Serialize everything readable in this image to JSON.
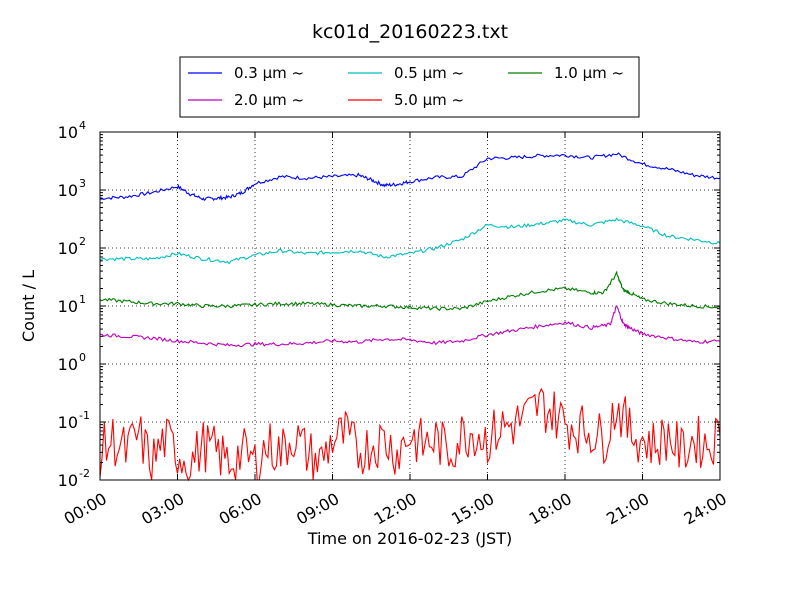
{
  "chart_data": {
    "type": "line",
    "title": "kc01d_20160223.txt",
    "xlabel": "Time on 2016-02-23 (JST)",
    "ylabel": "Count / L",
    "yscale": "log",
    "ylim": [
      0.01,
      10000
    ],
    "xlim": [
      "00:00",
      "24:00"
    ],
    "x_ticks": [
      "00:00",
      "03:00",
      "06:00",
      "09:00",
      "12:00",
      "15:00",
      "18:00",
      "21:00",
      "24:00"
    ],
    "y_ticks": [
      {
        "base": "10",
        "exp": "-2"
      },
      {
        "base": "10",
        "exp": "-1"
      },
      {
        "base": "10",
        "exp": "0"
      },
      {
        "base": "10",
        "exp": "1"
      },
      {
        "base": "10",
        "exp": "2"
      },
      {
        "base": "10",
        "exp": "3"
      },
      {
        "base": "10",
        "exp": "4"
      }
    ],
    "grid": true,
    "legend_position": "top-center",
    "series": [
      {
        "name": "0.3 μm ~",
        "color": "#0000ff",
        "x": [
          "00:00",
          "01:00",
          "02:00",
          "03:00",
          "03:30",
          "04:00",
          "04:30",
          "05:00",
          "05:30",
          "06:00",
          "07:00",
          "08:00",
          "09:00",
          "10:00",
          "10:30",
          "11:00",
          "11:30",
          "12:00",
          "13:00",
          "14:00",
          "15:00",
          "16:00",
          "17:00",
          "18:00",
          "19:00",
          "20:00",
          "21:00",
          "22:00",
          "23:00",
          "24:00"
        ],
        "y": [
          720,
          760,
          900,
          1150,
          850,
          700,
          720,
          750,
          900,
          1300,
          1700,
          1600,
          1700,
          1800,
          1500,
          1200,
          1250,
          1400,
          1650,
          1700,
          3500,
          3600,
          3900,
          4000,
          3600,
          4200,
          2800,
          2300,
          1800,
          1600
        ]
      },
      {
        "name": "0.5 μm ~",
        "color": "#00bfbf",
        "x": [
          "00:00",
          "01:00",
          "02:00",
          "03:00",
          "04:00",
          "05:00",
          "06:00",
          "07:00",
          "08:00",
          "09:00",
          "10:00",
          "11:00",
          "12:00",
          "13:00",
          "14:00",
          "15:00",
          "16:00",
          "17:00",
          "18:00",
          "19:00",
          "20:00",
          "21:00",
          "22:00",
          "23:00",
          "24:00"
        ],
        "y": [
          65,
          65,
          65,
          80,
          65,
          58,
          75,
          90,
          80,
          85,
          90,
          70,
          80,
          100,
          140,
          250,
          230,
          260,
          300,
          250,
          310,
          240,
          160,
          140,
          120
        ]
      },
      {
        "name": "1.0 μm ~",
        "color": "#008000",
        "x": [
          "00:00",
          "01:00",
          "02:00",
          "03:00",
          "04:00",
          "05:00",
          "06:00",
          "07:00",
          "08:00",
          "09:00",
          "10:00",
          "11:00",
          "12:00",
          "13:00",
          "14:00",
          "15:00",
          "16:00",
          "17:00",
          "18:00",
          "19:00",
          "19:30",
          "20:00",
          "20:15",
          "20:30",
          "21:00",
          "22:00",
          "23:00",
          "24:00"
        ],
        "y": [
          13,
          12,
          11,
          11,
          10,
          10,
          10.5,
          11,
          11,
          10.5,
          10,
          10,
          9.5,
          9,
          9,
          12,
          15,
          18,
          20,
          17,
          17,
          36,
          19,
          17,
          13,
          11,
          10,
          9.5
        ]
      },
      {
        "name": "2.0 μm ~",
        "color": "#bf00bf",
        "x": [
          "00:00",
          "01:00",
          "02:00",
          "03:00",
          "04:00",
          "05:00",
          "06:00",
          "07:00",
          "08:00",
          "09:00",
          "10:00",
          "11:00",
          "12:00",
          "13:00",
          "14:00",
          "15:00",
          "16:00",
          "17:00",
          "18:00",
          "19:00",
          "19:45",
          "20:00",
          "20:15",
          "20:30",
          "21:00",
          "22:00",
          "23:00",
          "24:00"
        ],
        "y": [
          3.2,
          3,
          2.8,
          2.5,
          2.3,
          2.1,
          2.2,
          2.2,
          2.3,
          2.5,
          2.4,
          2.7,
          2.6,
          2.3,
          2.5,
          3.2,
          3.8,
          4.5,
          5.2,
          4.2,
          4.8,
          10,
          5,
          4.2,
          3.3,
          2.8,
          2.4,
          2.5
        ]
      },
      {
        "name": "5.0 μm ~",
        "color": "#ff0000",
        "x": [
          "00:00",
          "00:30",
          "01:00",
          "01:30",
          "02:00",
          "02:30",
          "03:00",
          "03:30",
          "04:00",
          "04:30",
          "05:00",
          "05:30",
          "06:00",
          "06:30",
          "07:00",
          "07:30",
          "08:00",
          "08:30",
          "09:00",
          "09:30",
          "10:00",
          "10:30",
          "11:00",
          "11:30",
          "12:00",
          "12:30",
          "13:00",
          "13:30",
          "14:00",
          "14:30",
          "15:00",
          "15:30",
          "16:00",
          "16:30",
          "17:00",
          "17:30",
          "18:00",
          "18:30",
          "19:00",
          "19:30",
          "20:00",
          "20:30",
          "21:00",
          "21:30",
          "22:00",
          "22:30",
          "23:00",
          "23:30",
          "24:00"
        ],
        "y": [
          0.03,
          0.05,
          0.03,
          0.06,
          0.02,
          0.05,
          0.03,
          0.02,
          0.04,
          0.03,
          0.02,
          0.03,
          0.02,
          0.04,
          0.03,
          0.06,
          0.03,
          0.02,
          0.05,
          0.06,
          0.03,
          0.04,
          0.05,
          0.03,
          0.06,
          0.04,
          0.05,
          0.03,
          0.06,
          0.07,
          0.05,
          0.08,
          0.09,
          0.12,
          0.2,
          0.15,
          0.1,
          0.08,
          0.07,
          0.05,
          0.2,
          0.07,
          0.05,
          0.04,
          0.06,
          0.03,
          0.05,
          0.04,
          0.06
        ]
      }
    ]
  }
}
